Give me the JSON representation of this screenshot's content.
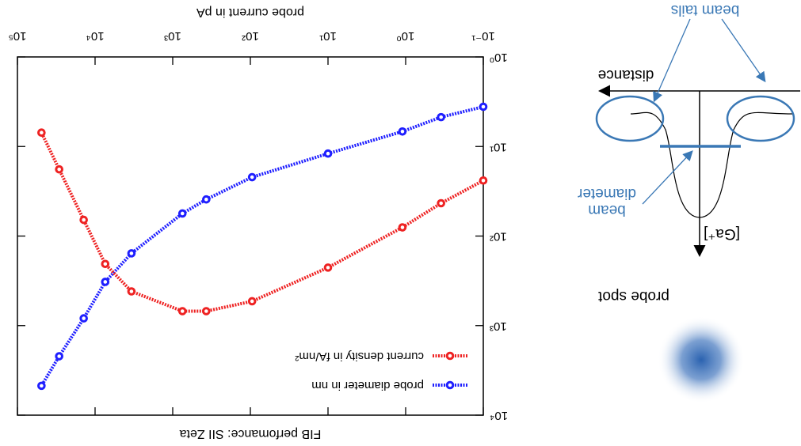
{
  "chart_data": {
    "type": "line",
    "title": "FIB perfomance: SII Zeta",
    "x_label": "probe current in pA",
    "x": [
      0.1,
      0.35,
      1.1,
      10,
      95,
      370,
      750,
      3400,
      7400,
      14000,
      29000,
      49000
    ],
    "series": [
      {
        "name": "probe diameter in nm",
        "color": "#1f1fff",
        "values": [
          3.6,
          4.7,
          6.8,
          12,
          22,
          39,
          56,
          156,
          325,
          830,
          2200,
          4700
        ]
      },
      {
        "name": "current density in fA/nm²",
        "color": "#ee2222",
        "values": [
          24,
          43,
          80,
          225,
          535,
          690,
          690,
          415,
          205,
          66,
          18,
          7
        ]
      }
    ],
    "xlim": [
      0.1,
      100000
    ],
    "ylim": [
      1,
      10000
    ],
    "log_x": true,
    "log_y": true,
    "xticks": [
      {
        "value": 0.1,
        "label": "10⁻¹"
      },
      {
        "value": 1,
        "label": "10⁰"
      },
      {
        "value": 10,
        "label": "10¹"
      },
      {
        "value": 100,
        "label": "10²"
      },
      {
        "value": 1000,
        "label": "10³"
      },
      {
        "value": 10000,
        "label": "10⁴"
      },
      {
        "value": 100000,
        "label": "10⁵"
      }
    ],
    "yticks": [
      {
        "value": 1,
        "label": "10⁰"
      },
      {
        "value": 10,
        "label": "10¹"
      },
      {
        "value": 100,
        "label": "10²"
      },
      {
        "value": 1000,
        "label": "10³"
      },
      {
        "value": 10000,
        "label": "10⁴"
      }
    ],
    "legend": "top-left"
  },
  "diagram": {
    "probe_spot": "probe spot",
    "beam_diameter": [
      "beam",
      "diameter"
    ],
    "beam_tails": "beam tails",
    "y_axis": "[Ga⁺]",
    "x_axis": "distance"
  }
}
